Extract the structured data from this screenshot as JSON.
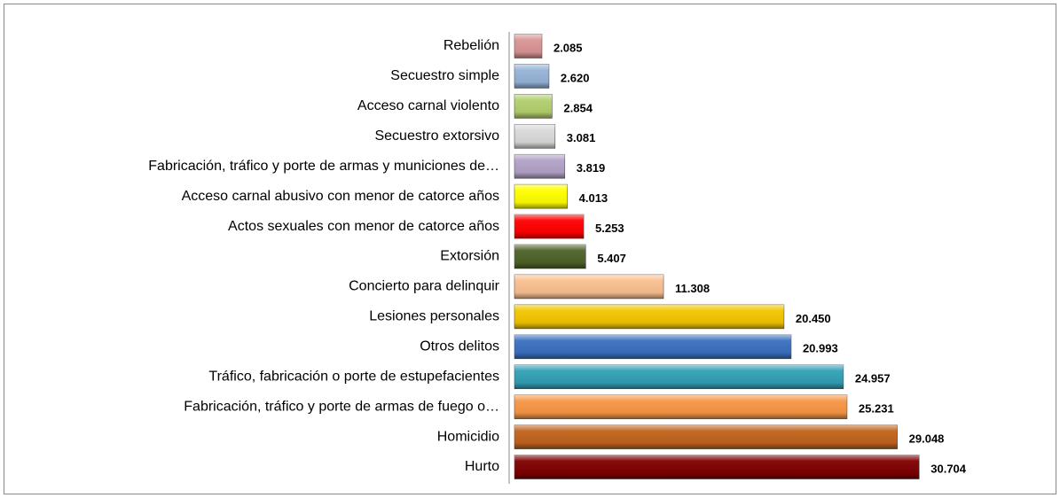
{
  "chart_data": {
    "type": "bar",
    "orientation": "horizontal",
    "categories": [
      "Rebelión",
      "Secuestro simple",
      "Acceso carnal violento",
      "Secuestro extorsivo",
      "Fabricación, tráfico y porte de armas y municiones de…",
      "Acceso carnal abusivo con menor de catorce años",
      "Actos sexuales con menor de catorce años",
      "Extorsión",
      "Concierto para delinquir",
      "Lesiones personales ",
      "Otros delitos",
      "Tráfico, fabricación o porte de estupefacientes",
      "Fabricación, tráfico y porte de armas de fuego o…",
      "Homicidio",
      "Hurto"
    ],
    "values": [
      2085,
      2620,
      2854,
      3081,
      3819,
      4013,
      5253,
      5407,
      11308,
      20450,
      20993,
      24957,
      25231,
      29048,
      30704
    ],
    "value_labels": [
      "2.085",
      "2.620",
      "2.854",
      "3.081",
      "3.819",
      "4.013",
      "5.253",
      "5.407",
      "11.308",
      "20.450",
      "20.993",
      "24.957",
      "25.231",
      "29.048",
      "30.704"
    ],
    "colors": [
      "#d99594",
      "#95b3d7",
      "#b3cf6e",
      "#d9d9d9",
      "#b3a2c7",
      "#ffff00",
      "#ff0000",
      "#4f6228",
      "#fac090",
      "#f2c500",
      "#3a70c0",
      "#31a0b5",
      "#f79646",
      "#c0631c",
      "#7f0000"
    ]
  }
}
